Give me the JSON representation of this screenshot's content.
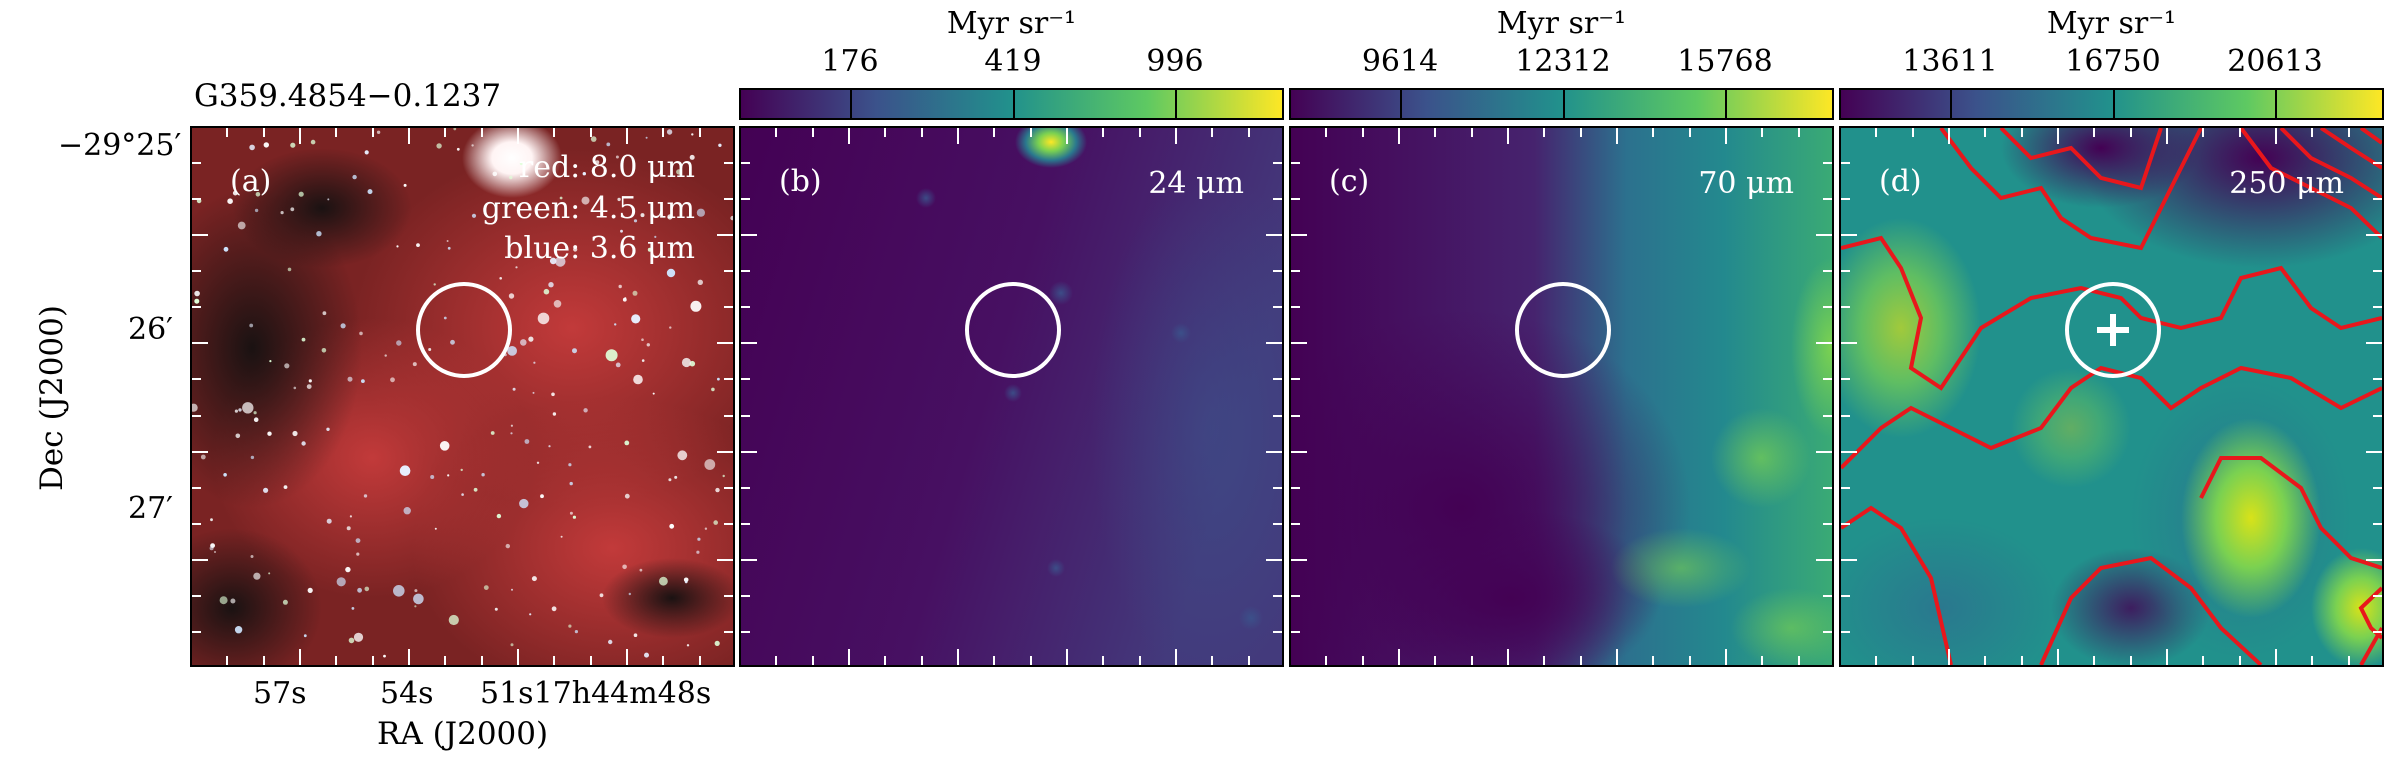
{
  "source_name": "G359.4854−0.1237",
  "x_axis_label": "RA (J2000)",
  "y_axis_label": "Dec (J2000)",
  "ra_ticks": [
    "57s",
    "54s",
    "51s17h44m48s"
  ],
  "dec_ticks": [
    "−29°25′",
    "26′",
    "27′"
  ],
  "panels": [
    {
      "id": "a",
      "label": "(a)",
      "legend": [
        "red: 8.0 μm",
        "green: 4.5 μm",
        "blue: 3.6 μm"
      ]
    },
    {
      "id": "b",
      "label": "(b)",
      "wavelength": "24 μm",
      "colorbar": {
        "unit": "Myr sr⁻¹",
        "ticks": [
          "176",
          "419",
          "996"
        ]
      }
    },
    {
      "id": "c",
      "label": "(c)",
      "wavelength": "70 μm",
      "colorbar": {
        "unit": "Myr sr⁻¹",
        "ticks": [
          "9614",
          "12312",
          "15768"
        ]
      }
    },
    {
      "id": "d",
      "label": "(d)",
      "wavelength": "250 μm",
      "colorbar": {
        "unit": "Myr sr⁻¹",
        "ticks": [
          "13611",
          "16750",
          "20613"
        ]
      }
    }
  ],
  "colors": {
    "viridis_low": "#440154",
    "viridis_mid": "#21918c",
    "viridis_high": "#fde725",
    "contour": "#e8171c",
    "marker": "#ffffff"
  }
}
